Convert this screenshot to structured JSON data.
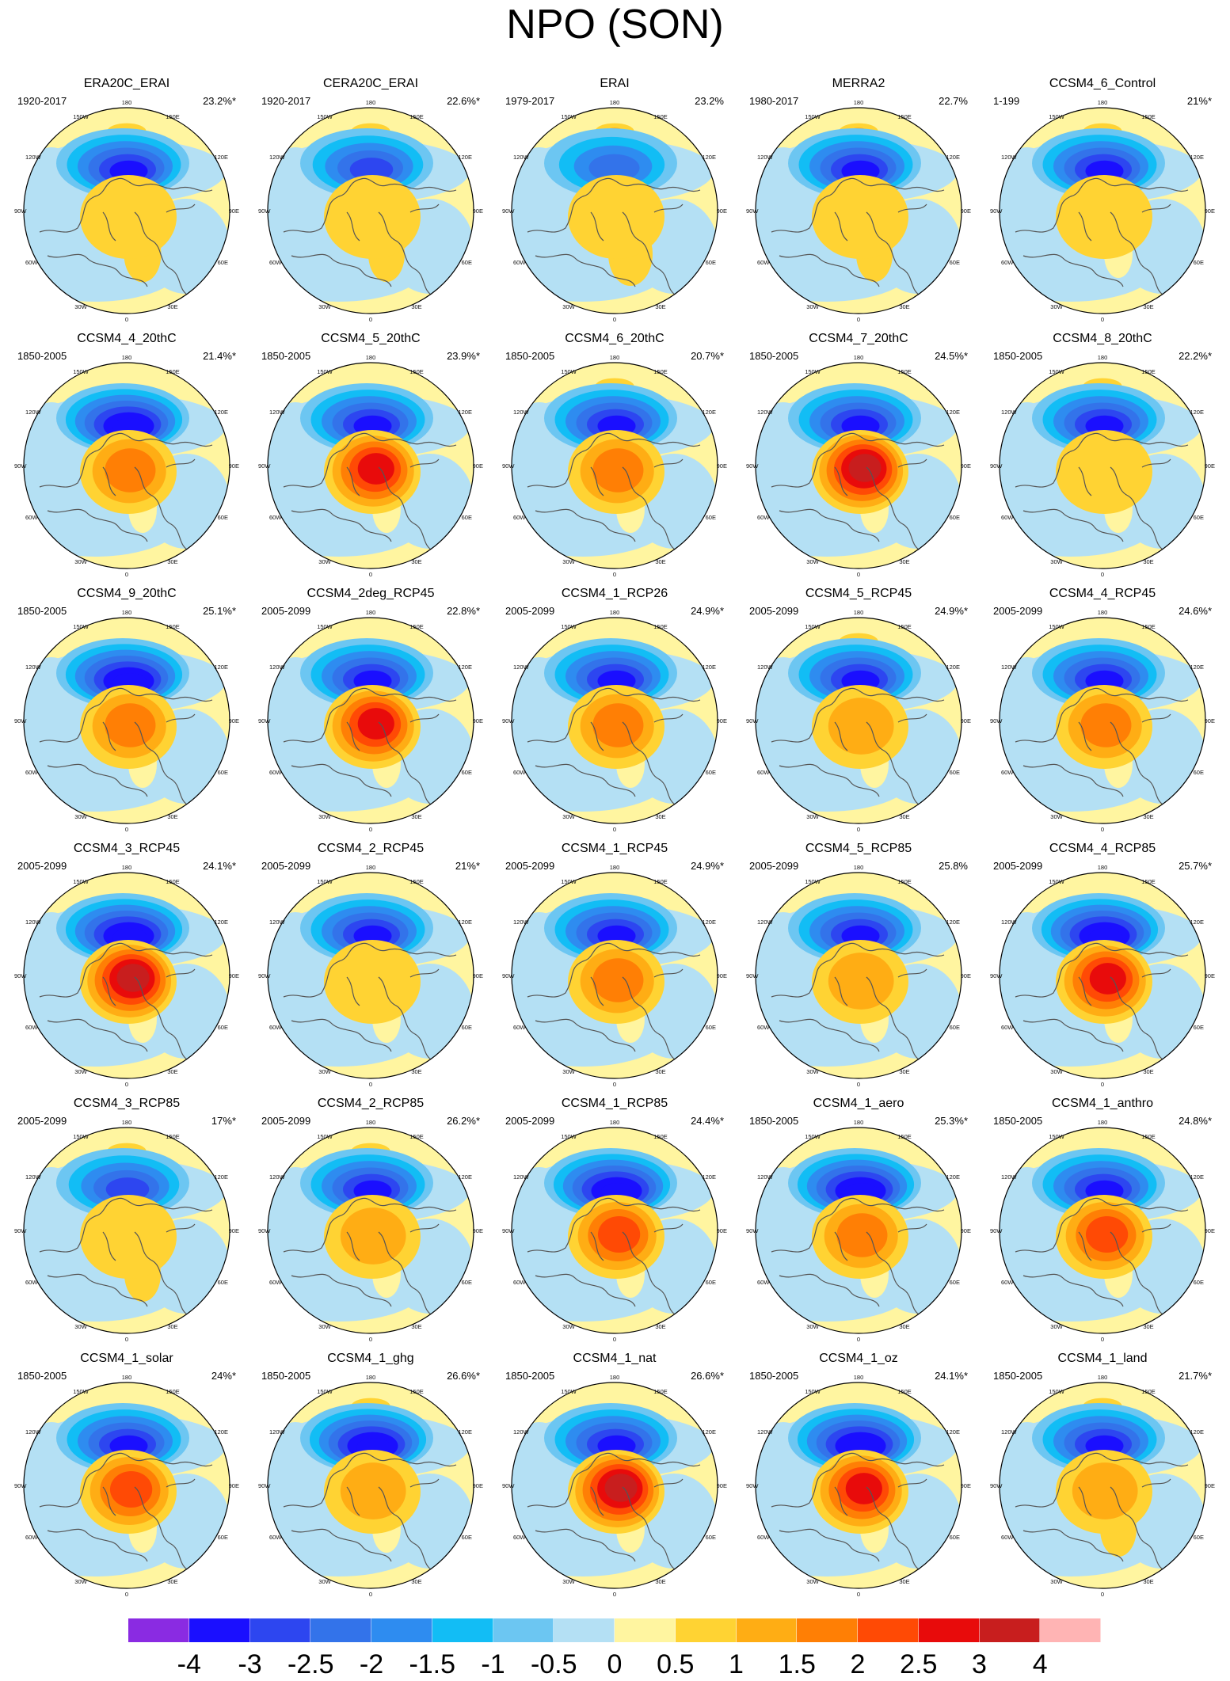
{
  "title": "NPO (SON)",
  "panels": [
    {
      "name": "ERA20C_ERAI",
      "period": "1920-2017",
      "pct": "23.2%*",
      "nl": -3,
      "np": 0.5,
      "al": 0.55,
      "pacific": 0.5,
      "eur": 0
    },
    {
      "name": "CERA20C_ERAI",
      "period": "1920-2017",
      "pct": "22.6%*",
      "nl": -2.5,
      "np": 0.5,
      "al": 0.5,
      "pacific": 0.5,
      "eur": 0
    },
    {
      "name": "ERAI",
      "period": "1979-2017",
      "pct": "23.2%",
      "nl": -2,
      "np": 0.5,
      "al": 1,
      "pacific": 1,
      "eur": 0
    },
    {
      "name": "MERRA2",
      "period": "1980-2017",
      "pct": "22.7%",
      "nl": -3,
      "np": 0.5,
      "al": 0.5,
      "pacific": 1,
      "eur": 0.5
    },
    {
      "name": "CCSM4_6_Control",
      "period": "1-199",
      "pct": "21%*",
      "nl": -3,
      "np": 0.5,
      "al": 0,
      "pacific": 0.5,
      "eur": 0
    },
    {
      "name": "CCSM4_4_20thC",
      "period": "1850-2005",
      "pct": "21.4%*",
      "nl": -3.5,
      "np": 1.5,
      "al": 0,
      "pacific": 0,
      "eur": 0
    },
    {
      "name": "CCSM4_5_20thC",
      "period": "1850-2005",
      "pct": "23.9%*",
      "nl": -3,
      "np": 2.5,
      "al": 0,
      "pacific": 0,
      "eur": 0
    },
    {
      "name": "CCSM4_6_20thC",
      "period": "1850-2005",
      "pct": "20.7%*",
      "nl": -3,
      "np": 1.5,
      "al": 0,
      "pacific": 0.5,
      "eur": 0
    },
    {
      "name": "CCSM4_7_20thC",
      "period": "1850-2005",
      "pct": "24.5%*",
      "nl": -3,
      "np": 3,
      "al": 0,
      "pacific": 0,
      "eur": 0
    },
    {
      "name": "CCSM4_8_20thC",
      "period": "1850-2005",
      "pct": "22.2%*",
      "nl": -3,
      "np": 0.5,
      "al": 0,
      "pacific": 0.5,
      "eur": 0
    },
    {
      "name": "CCSM4_9_20thC",
      "period": "1850-2005",
      "pct": "25.1%*",
      "nl": -3.5,
      "np": 1.5,
      "al": 0,
      "pacific": 0,
      "eur": 0
    },
    {
      "name": "CCSM4_2deg_RCP45",
      "period": "2005-2099",
      "pct": "22.8%*",
      "nl": -3,
      "np": 2.5,
      "al": 0,
      "pacific": 0,
      "eur": 0
    },
    {
      "name": "CCSM4_1_RCP26",
      "period": "2005-2099",
      "pct": "24.9%*",
      "nl": -3,
      "np": 1.5,
      "al": 0,
      "pacific": 0,
      "eur": 0
    },
    {
      "name": "CCSM4_5_RCP45",
      "period": "2005-2099",
      "pct": "24.9%*",
      "nl": -3,
      "np": 1,
      "al": 0,
      "pacific": 0.5,
      "eur": 0
    },
    {
      "name": "CCSM4_4_RCP45",
      "period": "2005-2099",
      "pct": "24.6%*",
      "nl": -3,
      "np": 1.5,
      "al": 0,
      "pacific": 0,
      "eur": 0
    },
    {
      "name": "CCSM4_3_RCP45",
      "period": "2005-2099",
      "pct": "24.1%*",
      "nl": -3.5,
      "np": 3,
      "al": 0,
      "pacific": 0,
      "eur": 0
    },
    {
      "name": "CCSM4_2_RCP45",
      "period": "2005-2099",
      "pct": "21%*",
      "nl": -3,
      "np": 0.5,
      "al": 0,
      "pacific": 0,
      "eur": 0
    },
    {
      "name": "CCSM4_1_RCP45",
      "period": "2005-2099",
      "pct": "24.9%*",
      "nl": -3,
      "np": 1.5,
      "al": 0,
      "pacific": 0,
      "eur": 0
    },
    {
      "name": "CCSM4_5_RCP85",
      "period": "2005-2099",
      "pct": "25.8%",
      "nl": -3,
      "np": 1,
      "al": 0,
      "pacific": 0,
      "eur": 0
    },
    {
      "name": "CCSM4_4_RCP85",
      "period": "2005-2099",
      "pct": "25.7%*",
      "nl": -3.5,
      "np": 2.5,
      "al": 0,
      "pacific": 0,
      "eur": 0
    },
    {
      "name": "CCSM4_3_RCP85",
      "period": "2005-2099",
      "pct": "17%*",
      "nl": -2.5,
      "np": 0.5,
      "al": 0.5,
      "pacific": 0.5,
      "eur": 0
    },
    {
      "name": "CCSM4_2_RCP85",
      "period": "2005-2099",
      "pct": "26.2%*",
      "nl": -3,
      "np": 1,
      "al": 0,
      "pacific": 0.5,
      "eur": 0
    },
    {
      "name": "CCSM4_1_RCP85",
      "period": "2005-2099",
      "pct": "24.4%*",
      "nl": -3.5,
      "np": 2,
      "al": 0,
      "pacific": 0,
      "eur": 0
    },
    {
      "name": "CCSM4_1_aero",
      "period": "1850-2005",
      "pct": "25.3%*",
      "nl": -3.5,
      "np": 1.5,
      "al": 0,
      "pacific": 0,
      "eur": 0
    },
    {
      "name": "CCSM4_1_anthro",
      "period": "1850-2005",
      "pct": "24.8%*",
      "nl": -3,
      "np": 2,
      "al": 0,
      "pacific": 0,
      "eur": 0
    },
    {
      "name": "CCSM4_1_solar",
      "period": "1850-2005",
      "pct": "24%*",
      "nl": -3,
      "np": 2,
      "al": 0,
      "pacific": 0,
      "eur": 0
    },
    {
      "name": "CCSM4_1_ghg",
      "period": "1850-2005",
      "pct": "26.6%*",
      "nl": -3.5,
      "np": 1,
      "al": 0,
      "pacific": 0.5,
      "eur": 0
    },
    {
      "name": "CCSM4_1_nat",
      "period": "1850-2005",
      "pct": "26.6%*",
      "nl": -3,
      "np": 3,
      "al": 0,
      "pacific": 0,
      "eur": 0
    },
    {
      "name": "CCSM4_1_oz",
      "period": "1850-2005",
      "pct": "24.1%*",
      "nl": -3.5,
      "np": 2.5,
      "al": 0,
      "pacific": 0,
      "eur": 0
    },
    {
      "name": "CCSM4_1_land",
      "period": "1850-2005",
      "pct": "21.7%*",
      "nl": -3,
      "np": 1,
      "al": 0.5,
      "pacific": 0.5,
      "eur": 0
    }
  ],
  "lon_labels": [
    "180",
    "150W",
    "150E",
    "120W",
    "120E",
    "90W",
    "90E",
    "60W",
    "60E",
    "30W",
    "30E",
    "0"
  ],
  "colorbar": {
    "colors": [
      "#8a2be2",
      "#1a0fff",
      "#2d46f0",
      "#3373ea",
      "#2e8cf0",
      "#12bdf5",
      "#6cc6f2",
      "#b4e0f4",
      "#fff5a0",
      "#ffd333",
      "#ffad14",
      "#ff7f05",
      "#ff4a05",
      "#e80b0b",
      "#c81e1e",
      "#ffb4b4"
    ],
    "levels": [
      "-4",
      "-3",
      "-2.5",
      "-2",
      "-1.5",
      "-1",
      "-0.5",
      "0",
      "0.5",
      "1",
      "1.5",
      "2",
      "2.5",
      "3",
      "4"
    ]
  }
}
